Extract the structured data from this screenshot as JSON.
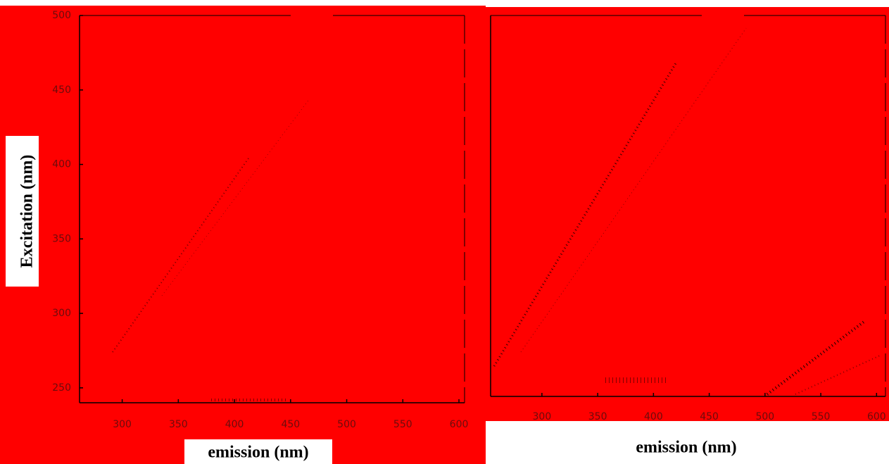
{
  "chart_data": [
    {
      "type": "heatmap",
      "xlabel": "emission (nm)",
      "ylabel": "Excitation (nm)",
      "xlim": [
        262,
        605
      ],
      "ylim": [
        240,
        500
      ],
      "xticks": [
        300,
        350,
        400,
        450,
        500,
        550,
        600
      ],
      "yticks": [
        250,
        300,
        350,
        400,
        450,
        500
      ]
    },
    {
      "type": "heatmap",
      "xlabel": "emission (nm)",
      "xlim": [
        254,
        608
      ],
      "xticks": [
        300,
        350,
        400,
        450,
        500,
        550,
        600
      ]
    }
  ]
}
